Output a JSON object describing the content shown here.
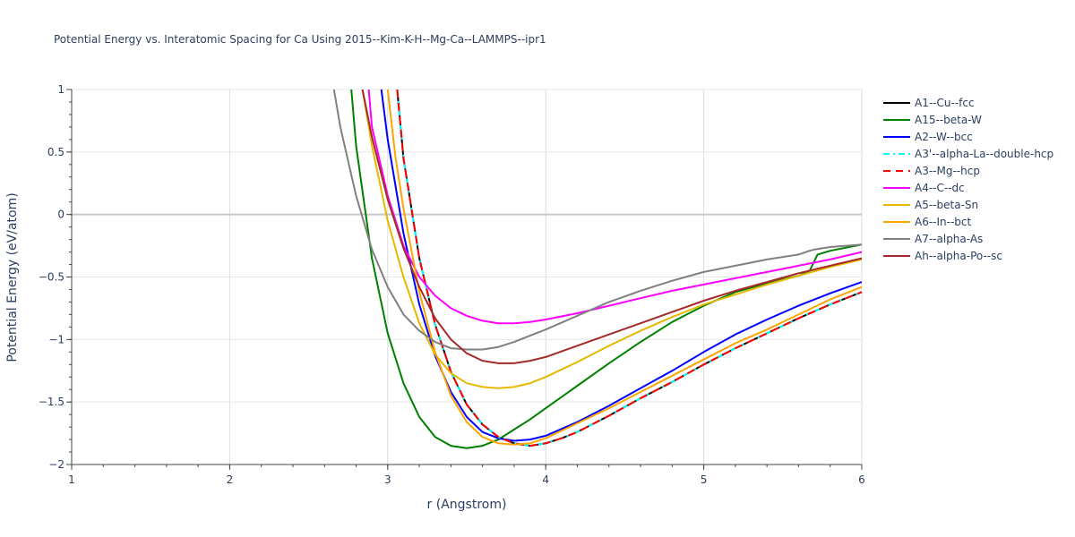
{
  "chart_data": {
    "type": "line",
    "title": "Potential Energy vs. Interatomic Spacing for Ca Using 2015--Kim-K-H--Mg-Ca--LAMMPS--ipr1",
    "xlabel": "r (Angstrom)",
    "ylabel": "Potential Energy (eV/atom)",
    "xlim": [
      1,
      6
    ],
    "ylim": [
      -2,
      1
    ],
    "xticks": [
      1,
      2,
      3,
      4,
      5,
      6
    ],
    "yticks": [
      1,
      0.5,
      0,
      -0.5,
      -1,
      -1.5,
      -2
    ],
    "ytick_labels": [
      "1",
      "0.5",
      "0",
      "−0.5",
      "−1",
      "−1.5",
      "−2"
    ],
    "grid": true,
    "legend_position": "right",
    "series": [
      {
        "name": "A1--Cu--fcc",
        "color": "#000000",
        "dash": "solid",
        "x": [
          3.06,
          3.1,
          3.2,
          3.3,
          3.4,
          3.5,
          3.6,
          3.7,
          3.8,
          3.9,
          4.0,
          4.1,
          4.2,
          4.4,
          4.6,
          4.8,
          5.0,
          5.2,
          5.4,
          5.6,
          5.8,
          6.0
        ],
        "y": [
          1.0,
          0.45,
          -0.35,
          -0.88,
          -1.26,
          -1.52,
          -1.68,
          -1.78,
          -1.83,
          -1.85,
          -1.83,
          -1.79,
          -1.74,
          -1.61,
          -1.47,
          -1.34,
          -1.2,
          -1.07,
          -0.95,
          -0.83,
          -0.72,
          -0.62
        ]
      },
      {
        "name": "A15--beta-W",
        "color": "#008000",
        "dash": "solid",
        "x": [
          2.77,
          2.8,
          2.9,
          3.0,
          3.1,
          3.2,
          3.3,
          3.4,
          3.5,
          3.6,
          3.7,
          3.8,
          3.9,
          4.0,
          4.2,
          4.4,
          4.6,
          4.8,
          5.0,
          5.2,
          5.4,
          5.6,
          5.67,
          5.72,
          5.8,
          6.0
        ],
        "y": [
          1.0,
          0.55,
          -0.35,
          -0.95,
          -1.35,
          -1.62,
          -1.78,
          -1.85,
          -1.87,
          -1.85,
          -1.8,
          -1.72,
          -1.64,
          -1.55,
          -1.37,
          -1.19,
          -1.02,
          -0.86,
          -0.73,
          -0.62,
          -0.55,
          -0.49,
          -0.45,
          -0.32,
          -0.29,
          -0.24
        ]
      },
      {
        "name": "A2--W--bcc",
        "color": "#0000ff",
        "dash": "solid",
        "x": [
          2.96,
          3.0,
          3.1,
          3.2,
          3.3,
          3.4,
          3.5,
          3.6,
          3.7,
          3.8,
          3.9,
          4.0,
          4.2,
          4.4,
          4.6,
          4.8,
          5.0,
          5.2,
          5.4,
          5.6,
          5.8,
          6.0
        ],
        "y": [
          1.0,
          0.6,
          -0.15,
          -0.72,
          -1.13,
          -1.42,
          -1.62,
          -1.74,
          -1.79,
          -1.81,
          -1.8,
          -1.77,
          -1.66,
          -1.53,
          -1.39,
          -1.25,
          -1.1,
          -0.96,
          -0.84,
          -0.73,
          -0.63,
          -0.54
        ]
      },
      {
        "name": "A3'--alpha-La--double-hcp",
        "color": "#00ffff",
        "dash": "dashdot",
        "x": [
          3.06,
          3.1,
          3.2,
          3.3,
          3.4,
          3.5,
          3.6,
          3.7,
          3.8,
          3.9,
          4.0,
          4.1,
          4.2,
          4.4,
          4.6,
          4.8,
          5.0,
          5.2,
          5.4,
          5.6,
          5.8,
          6.0
        ],
        "y": [
          1.0,
          0.45,
          -0.35,
          -0.88,
          -1.26,
          -1.52,
          -1.68,
          -1.78,
          -1.83,
          -1.85,
          -1.83,
          -1.79,
          -1.74,
          -1.61,
          -1.47,
          -1.34,
          -1.2,
          -1.07,
          -0.95,
          -0.83,
          -0.72,
          -0.62
        ]
      },
      {
        "name": "A3--Mg--hcp",
        "color": "#ff0000",
        "dash": "dash",
        "x": [
          3.06,
          3.1,
          3.2,
          3.3,
          3.4,
          3.5,
          3.6,
          3.7,
          3.8,
          3.9,
          4.0,
          4.1,
          4.2,
          4.4,
          4.6,
          4.8,
          5.0,
          5.2,
          5.4,
          5.6,
          5.8,
          6.0
        ],
        "y": [
          1.0,
          0.45,
          -0.35,
          -0.88,
          -1.26,
          -1.52,
          -1.68,
          -1.78,
          -1.83,
          -1.85,
          -1.83,
          -1.79,
          -1.74,
          -1.61,
          -1.47,
          -1.34,
          -1.2,
          -1.07,
          -0.95,
          -0.83,
          -0.72,
          -0.62
        ]
      },
      {
        "name": "A4--C--dc",
        "color": "#ff00ff",
        "dash": "solid",
        "x": [
          2.88,
          2.9,
          3.0,
          3.1,
          3.2,
          3.3,
          3.4,
          3.5,
          3.6,
          3.7,
          3.8,
          3.9,
          4.0,
          4.2,
          4.4,
          4.6,
          4.8,
          5.0,
          5.2,
          5.4,
          5.6,
          5.8,
          6.0
        ],
        "y": [
          1.0,
          0.7,
          0.15,
          -0.25,
          -0.5,
          -0.65,
          -0.75,
          -0.81,
          -0.85,
          -0.87,
          -0.87,
          -0.86,
          -0.84,
          -0.79,
          -0.73,
          -0.67,
          -0.61,
          -0.56,
          -0.51,
          -0.46,
          -0.41,
          -0.36,
          -0.3
        ]
      },
      {
        "name": "A5--beta-Sn",
        "color": "#e6b800",
        "dash": "solid",
        "x": [
          2.84,
          2.9,
          3.0,
          3.1,
          3.2,
          3.3,
          3.4,
          3.5,
          3.6,
          3.7,
          3.8,
          3.9,
          4.0,
          4.2,
          4.4,
          4.6,
          4.8,
          5.0,
          5.2,
          5.4,
          5.6,
          5.8,
          6.0
        ],
        "y": [
          1.0,
          0.55,
          -0.05,
          -0.5,
          -0.87,
          -1.12,
          -1.27,
          -1.35,
          -1.38,
          -1.39,
          -1.38,
          -1.35,
          -1.3,
          -1.18,
          -1.05,
          -0.93,
          -0.82,
          -0.72,
          -0.64,
          -0.56,
          -0.49,
          -0.42,
          -0.36
        ]
      },
      {
        "name": "A6--In--bct",
        "color": "#ffa500",
        "dash": "solid",
        "x": [
          3.0,
          3.05,
          3.1,
          3.2,
          3.3,
          3.4,
          3.5,
          3.6,
          3.7,
          3.8,
          3.9,
          4.0,
          4.2,
          4.4,
          4.6,
          4.8,
          5.0,
          5.2,
          5.4,
          5.6,
          5.8,
          6.0
        ],
        "y": [
          1.0,
          0.45,
          0.05,
          -0.62,
          -1.1,
          -1.45,
          -1.66,
          -1.78,
          -1.83,
          -1.84,
          -1.83,
          -1.79,
          -1.67,
          -1.55,
          -1.42,
          -1.29,
          -1.16,
          -1.03,
          -0.92,
          -0.8,
          -0.68,
          -0.58
        ]
      },
      {
        "name": "A7--alpha-As",
        "color": "#808080",
        "dash": "solid",
        "x": [
          2.66,
          2.7,
          2.8,
          2.9,
          3.0,
          3.1,
          3.2,
          3.3,
          3.4,
          3.5,
          3.6,
          3.7,
          3.8,
          3.9,
          4.0,
          4.2,
          4.4,
          4.6,
          4.8,
          5.0,
          5.2,
          5.4,
          5.6,
          5.67,
          5.7,
          5.8,
          6.0
        ],
        "y": [
          1.0,
          0.7,
          0.15,
          -0.28,
          -0.58,
          -0.8,
          -0.93,
          -1.02,
          -1.07,
          -1.08,
          -1.08,
          -1.06,
          -1.02,
          -0.97,
          -0.92,
          -0.81,
          -0.7,
          -0.61,
          -0.53,
          -0.46,
          -0.41,
          -0.36,
          -0.32,
          -0.29,
          -0.28,
          -0.26,
          -0.24
        ]
      },
      {
        "name": "Ah--alpha-Po--sc",
        "color": "#a52a2a",
        "dash": "solid",
        "x": [
          2.84,
          2.9,
          3.0,
          3.1,
          3.2,
          3.3,
          3.4,
          3.5,
          3.6,
          3.7,
          3.8,
          3.9,
          4.0,
          4.2,
          4.4,
          4.6,
          4.8,
          5.0,
          5.2,
          5.4,
          5.6,
          5.8,
          6.0
        ],
        "y": [
          1.0,
          0.62,
          0.12,
          -0.27,
          -0.58,
          -0.83,
          -1.0,
          -1.11,
          -1.17,
          -1.19,
          -1.19,
          -1.17,
          -1.14,
          -1.05,
          -0.96,
          -0.87,
          -0.78,
          -0.69,
          -0.61,
          -0.54,
          -0.47,
          -0.41,
          -0.35
        ]
      }
    ]
  }
}
